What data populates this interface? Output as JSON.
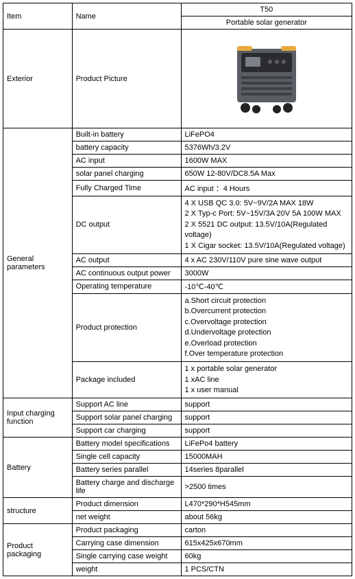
{
  "header": {
    "item": "Item",
    "name": "Name",
    "model": "T50",
    "subtitle": "Portable solar generator"
  },
  "sections": {
    "exterior": {
      "label": "Exterior",
      "row_name": "Product Picture"
    },
    "general": {
      "label": "General parameters",
      "rows": [
        {
          "name": "Built-in battery",
          "value": "LiFePO4"
        },
        {
          "name": "battery capacity",
          "value": "5376Wh/3.2V"
        },
        {
          "name": "AC input",
          "value": "1600W MAX"
        },
        {
          "name": "solar panel charging",
          "value": "650W  12-80V/DC8.5A Max"
        },
        {
          "name": "Fully Charged Time",
          "value": "AC input ：4 Hours"
        },
        {
          "name": "DC output",
          "value": "4 X USB QC 3.0: 5V~9V/2A MAX  18W\n2 X Typ-c Port: 5V~15V/3A  20V 5A 100W MAX\n2 X 5521 DC output:  13.5V/10A(Regulated voltage)\n1 X Cigar socket: 13.5V/10A(Regulated voltage)"
        },
        {
          "name": "AC output",
          "value": "4 x AC 230V/110V pure sine wave output"
        },
        {
          "name": "AC continuous output power",
          "value": "3000W"
        },
        {
          "name": "Operating temperature",
          "value": " -10℃-40℃"
        },
        {
          "name": "Product protection",
          "value": "a.Short circuit protection\nb.Overcurrent protection\nc.Overvoltage protection\nd.Undervoltage protection\ne.Overload protection\nf.Over temperature protection"
        },
        {
          "name": "Package included",
          "value": "1 x portable solar generator\n1 xAC line\n1 x user manual"
        }
      ]
    },
    "input_charging": {
      "label": "Input charging function",
      "rows": [
        {
          "name": "Support AC line",
          "value": "support"
        },
        {
          "name": "Support solar panel charging",
          "value": "support"
        },
        {
          "name": "Support car charging",
          "value": "support"
        }
      ]
    },
    "battery": {
      "label": "Battery",
      "rows": [
        {
          "name": "Battery model specifications",
          "value": "LiFePo4 battery"
        },
        {
          "name": "Single cell capacity",
          "value": "15000MAH"
        },
        {
          "name": "Battery series parallel",
          "value": "14series 8parallel"
        },
        {
          "name": "Battery charge and discharge life",
          "value": ">2500 times"
        }
      ]
    },
    "structure": {
      "label": "structure",
      "rows": [
        {
          "name": "Product dimension",
          "value": " L470*290*H545mm"
        },
        {
          "name": "net weight",
          "value": "about 56kg"
        }
      ]
    },
    "packaging": {
      "label": "Product packaging",
      "rows": [
        {
          "name": "Product packaging",
          "value": "carton"
        },
        {
          "name": "Carrying case dimension",
          "value": "615x425x670mm"
        },
        {
          "name": "Single carrying case weight",
          "value": "60kg"
        },
        {
          "name": "weight",
          "value": "1 PCS/CTN"
        }
      ]
    }
  },
  "styling": {
    "table_border_color": "#000000",
    "background_color": "#ffffff",
    "font_family": "Arial",
    "base_font_size_pt": 8,
    "product_colors": {
      "body": "#5a5d63",
      "body_dark": "#3c3f44",
      "body_light": "#7d8088",
      "accent": "#e8a83c",
      "panel": "#2a2c30",
      "wheel": "#222"
    }
  }
}
